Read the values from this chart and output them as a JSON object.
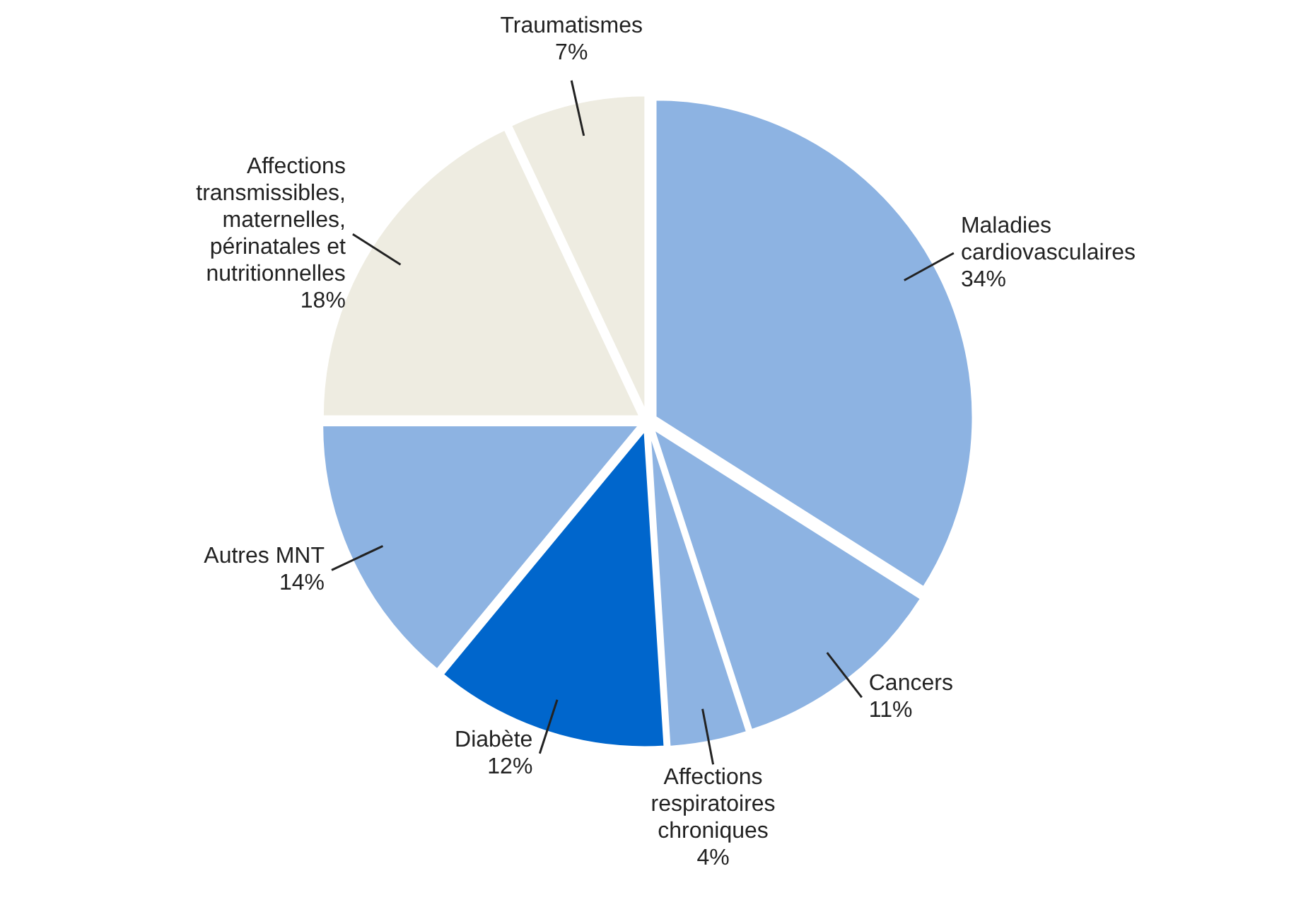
{
  "chart_data": {
    "type": "pie",
    "categories": [
      "Maladies cardiovasculaires",
      "Cancers",
      "Affections respiratoires chroniques",
      "Diabète",
      "Autres MNT",
      "Affections transmissibles, maternelles, périnatales et nutritionnelles",
      "Traumatismes"
    ],
    "values": [
      34,
      11,
      4,
      12,
      14,
      18,
      7
    ],
    "value_labels": [
      "34%",
      "11%",
      "4%",
      "12%",
      "14%",
      "18%",
      "7%"
    ],
    "colors": [
      "#8db3e2",
      "#8db3e2",
      "#8db3e2",
      "#0066cc",
      "#8db3e2",
      "#eeece1",
      "#eeece1"
    ]
  }
}
